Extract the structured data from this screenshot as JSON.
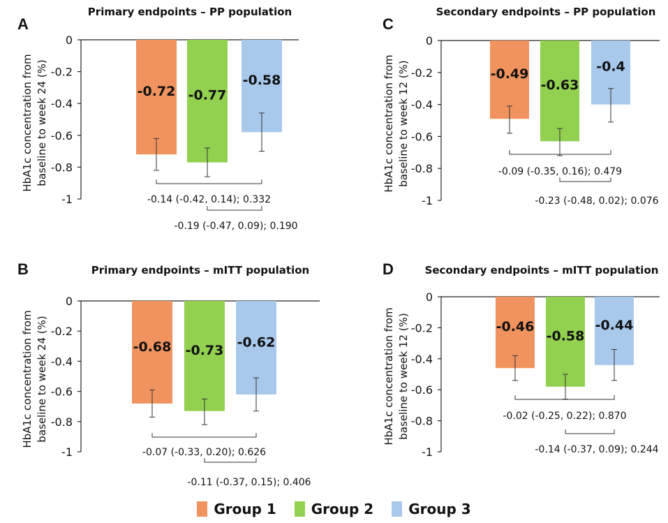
{
  "legend": [
    {
      "label": "Group 1",
      "color": "#F0935E"
    },
    {
      "label": "Group 2",
      "color": "#92D050"
    },
    {
      "label": "Group 3",
      "color": "#A8C8EC"
    }
  ],
  "chart_data": [
    {
      "type": "bar",
      "panel": "A",
      "title": "Primary endpoints – PP population",
      "ylabel": "HbA1c concentration from baseline to week 24 (%)",
      "ylabel_lines": [
        "HbA1c concentration from",
        "baseline to week 24 (%)"
      ],
      "ylim": [
        -1,
        0
      ],
      "yticks": [
        0,
        -0.2,
        -0.4,
        -0.6,
        -0.8,
        -1
      ],
      "ytick_labels": [
        "0",
        "-0.2",
        "-0.4",
        "-0.6",
        "-0.8",
        "-1"
      ],
      "categories": [
        "Group 1",
        "Group 2",
        "Group 3"
      ],
      "values": [
        -0.72,
        -0.77,
        -0.58
      ],
      "value_labels": [
        "-0.72",
        "-0.77",
        "-0.58"
      ],
      "error_low": [
        -0.82,
        -0.86,
        -0.7
      ],
      "error_high": [
        -0.62,
        -0.68,
        -0.46
      ],
      "comparisons": [
        {
          "from": 0,
          "to": 2,
          "label": "-0.14 (-0.42, 0.14); 0.332"
        },
        {
          "from": 1,
          "to": 2,
          "label": "-0.19 (-0.47, 0.09); 0.190"
        }
      ]
    },
    {
      "type": "bar",
      "panel": "B",
      "title": "Primary endpoints – mITT population",
      "ylabel": "HbA1c concentration from baseline to week 24 (%)",
      "ylabel_lines": [
        "HbA1c concentration from",
        "baseline to week 24 (%)"
      ],
      "ylim": [
        -1,
        0
      ],
      "yticks": [
        0,
        -0.2,
        -0.4,
        -0.6,
        -0.8,
        -1
      ],
      "ytick_labels": [
        "0",
        "-0.2",
        "-0.4",
        "-0.6",
        "-0.8",
        "-1"
      ],
      "categories": [
        "Group 1",
        "Group 2",
        "Group 3"
      ],
      "values": [
        -0.68,
        -0.73,
        -0.62
      ],
      "value_labels": [
        "-0.68",
        "-0.73",
        "-0.62"
      ],
      "error_low": [
        -0.77,
        -0.82,
        -0.73
      ],
      "error_high": [
        -0.59,
        -0.65,
        -0.51
      ],
      "comparisons": [
        {
          "from": 0,
          "to": 2,
          "label": "-0.07 (-0.33, 0.20); 0.626"
        },
        {
          "from": 1,
          "to": 2,
          "label": "-0.11 (-0.37, 0.15); 0.406"
        }
      ]
    },
    {
      "type": "bar",
      "panel": "C",
      "title": "Secondary endpoints – PP population",
      "ylabel": "HbA1c concentration from baseline to week 12 (%)",
      "ylabel_lines": [
        "HbA1c concentration from",
        "baseline to week 12 (%)"
      ],
      "ylim": [
        -1,
        0
      ],
      "yticks": [
        0,
        -0.2,
        -0.4,
        -0.6,
        -0.8,
        -1
      ],
      "ytick_labels": [
        "0",
        "-0.2",
        "-0.4",
        "-0.6",
        "-0.8",
        "-1"
      ],
      "categories": [
        "Group 1",
        "Group 2",
        "Group 3"
      ],
      "values": [
        -0.49,
        -0.63,
        -0.4
      ],
      "value_labels": [
        "-0.49",
        "-0.63",
        "-0.4"
      ],
      "error_low": [
        -0.58,
        -0.72,
        -0.51
      ],
      "error_high": [
        -0.41,
        -0.55,
        -0.3
      ],
      "comparisons": [
        {
          "from": 0,
          "to": 2,
          "label": "-0.09 (-0.35, 0.16); 0.479"
        },
        {
          "from": 1,
          "to": 2,
          "label": "-0.23 (-0.48, 0.02); 0.076"
        }
      ]
    },
    {
      "type": "bar",
      "panel": "D",
      "title": "Secondary endpoints – mITT population",
      "ylabel": "HbA1c concentration from baseline to week 12 (%)",
      "ylabel_lines": [
        "HbA1c concentration from",
        "baseline to week 12 (%)"
      ],
      "ylim": [
        -1,
        0
      ],
      "yticks": [
        0,
        -0.2,
        -0.4,
        -0.6,
        -0.8,
        -1
      ],
      "ytick_labels": [
        "0",
        "-0.2",
        "-0.4",
        "-0.6",
        "-0.8",
        "-1"
      ],
      "categories": [
        "Group 1",
        "Group 2",
        "Group 3"
      ],
      "values": [
        -0.46,
        -0.58,
        -0.44
      ],
      "value_labels": [
        "-0.46",
        "-0.58",
        "-0.44"
      ],
      "error_low": [
        -0.54,
        -0.66,
        -0.54
      ],
      "error_high": [
        -0.38,
        -0.5,
        -0.34
      ],
      "comparisons": [
        {
          "from": 0,
          "to": 2,
          "label": "-0.02 (-0.25, 0.22); 0.870"
        },
        {
          "from": 1,
          "to": 2,
          "label": "-0.14 (-0.37, 0.09); 0.244"
        }
      ]
    }
  ]
}
